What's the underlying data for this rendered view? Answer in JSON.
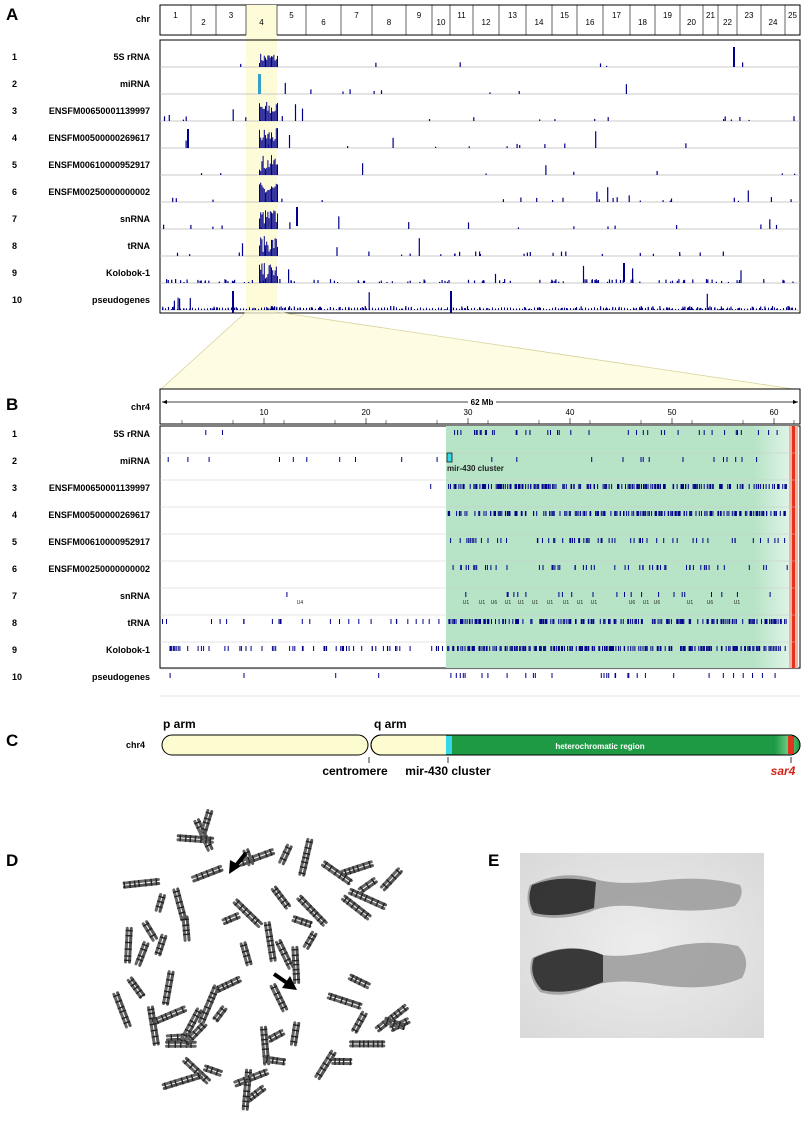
{
  "colors": {
    "bar": "#00008b",
    "highlight": "#fdfbd8",
    "green": "#1d9a45",
    "cyan": "#35d7e8",
    "red": "#e0341e",
    "chrom_fill": "#fdfbd0"
  },
  "panel_a": {
    "label": "A",
    "axis_label": "chr",
    "chromosomes": [
      "1",
      "2",
      "3",
      "4",
      "5",
      "6",
      "7",
      "8",
      "9",
      "10",
      "11",
      "12",
      "13",
      "14",
      "15",
      "16",
      "17",
      "18",
      "19",
      "20",
      "21",
      "22",
      "23",
      "24",
      "25"
    ],
    "rows": [
      {
        "n": "1",
        "name": "5S rRNA"
      },
      {
        "n": "2",
        "name": "miRNA"
      },
      {
        "n": "3",
        "name": "ENSFM00650001139997"
      },
      {
        "n": "4",
        "name": "ENSFM00500000269617"
      },
      {
        "n": "5",
        "name": "ENSFM00610000952917"
      },
      {
        "n": "6",
        "name": "ENSFM00250000000002"
      },
      {
        "n": "7",
        "name": "snRNA"
      },
      {
        "n": "8",
        "name": "tRNA"
      },
      {
        "n": "9",
        "name": "Kolobok-1"
      },
      {
        "n": "10",
        "name": "pseudogenes"
      }
    ]
  },
  "panel_b": {
    "label": "B",
    "axis_label": "chr4",
    "scale_label": "62 Mb",
    "ticks": [
      "10",
      "20",
      "30",
      "40",
      "50",
      "60"
    ],
    "mir_label": "mir-430 cluster",
    "snrna_labels": [
      "U4",
      "U1",
      "U1",
      "U6",
      "U1",
      "U1",
      "U1",
      "U1",
      "U1",
      "U1",
      "U1",
      "U6",
      "U1",
      "U6",
      "U1",
      "U6",
      "U1"
    ],
    "rows": [
      {
        "n": "1",
        "name": "5S rRNA"
      },
      {
        "n": "2",
        "name": "miRNA"
      },
      {
        "n": "3",
        "name": "ENSFM00650001139997"
      },
      {
        "n": "4",
        "name": "ENSFM00500000269617"
      },
      {
        "n": "5",
        "name": "ENSFM00610000952917"
      },
      {
        "n": "6",
        "name": "ENSFM00250000000002"
      },
      {
        "n": "7",
        "name": "snRNA"
      },
      {
        "n": "8",
        "name": "tRNA"
      },
      {
        "n": "9",
        "name": "Kolobok-1"
      },
      {
        "n": "10",
        "name": "pseudogenes"
      }
    ]
  },
  "panel_c": {
    "label": "C",
    "chrom": "chr4",
    "p_arm": "p arm",
    "q_arm": "q arm",
    "centromere": "centromere",
    "mir_cluster": "mir-430 cluster",
    "hetero": "heterochromatic region",
    "sar4": "sar4"
  },
  "panel_d": {
    "label": "D"
  },
  "panel_e": {
    "label": "E"
  }
}
